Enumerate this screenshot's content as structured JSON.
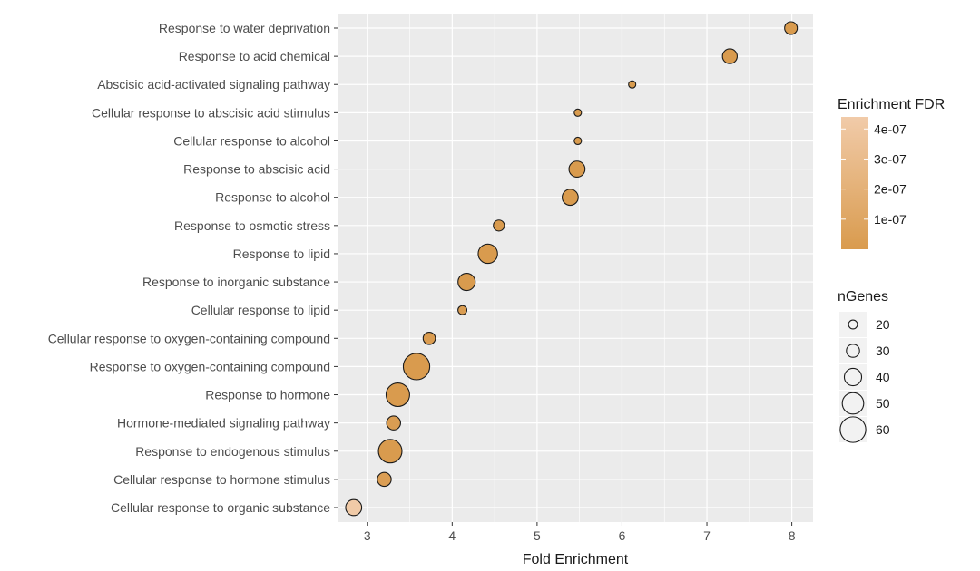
{
  "chart_data": {
    "type": "scatter",
    "xlabel": "Fold Enrichment",
    "ylabel": "",
    "xlim": [
      2.65,
      8.25
    ],
    "x_ticks": [
      3,
      4,
      5,
      6,
      7,
      8
    ],
    "grid": "on",
    "legend_position": "right",
    "categories": [
      "Response to water deprivation",
      "Response to acid chemical",
      "Abscisic acid-activated signaling pathway",
      "Cellular response to abscisic acid stimulus",
      "Cellular response to alcohol",
      "Response to abscisic acid",
      "Response to alcohol",
      "Response to osmotic stress",
      "Response to lipid",
      "Response to inorganic substance",
      "Cellular response to lipid",
      "Cellular response to oxygen-containing compound",
      "Response to oxygen-containing compound",
      "Response to hormone",
      "Hormone-mediated signaling pathway",
      "Response to endogenous stimulus",
      "Cellular response to hormone stimulus",
      "Cellular response to organic substance"
    ],
    "points": [
      {
        "category": "Response to water deprivation",
        "x": 7.99,
        "nGenes": 29,
        "fdr": 1e-09
      },
      {
        "category": "Response to acid chemical",
        "x": 7.27,
        "nGenes": 34,
        "fdr": 1e-09
      },
      {
        "category": "Abscisic acid-activated signaling pathway",
        "x": 6.12,
        "nGenes": 16,
        "fdr": 5e-09
      },
      {
        "category": "Cellular response to abscisic acid stimulus",
        "x": 5.48,
        "nGenes": 16,
        "fdr": 5e-09
      },
      {
        "category": "Cellular response to alcohol",
        "x": 5.48,
        "nGenes": 16,
        "fdr": 5e-09
      },
      {
        "category": "Response to abscisic acid",
        "x": 5.47,
        "nGenes": 37,
        "fdr": 1e-09
      },
      {
        "category": "Response to alcohol",
        "x": 5.39,
        "nGenes": 37,
        "fdr": 1e-09
      },
      {
        "category": "Response to osmotic stress",
        "x": 4.55,
        "nGenes": 25,
        "fdr": 1e-09
      },
      {
        "category": "Response to lipid",
        "x": 4.42,
        "nGenes": 45,
        "fdr": 1e-09
      },
      {
        "category": "Response to inorganic substance",
        "x": 4.17,
        "nGenes": 40,
        "fdr": 1e-09
      },
      {
        "category": "Cellular response to lipid",
        "x": 4.12,
        "nGenes": 20,
        "fdr": 2e-08
      },
      {
        "category": "Cellular response to oxygen-containing compound",
        "x": 3.73,
        "nGenes": 28,
        "fdr": 1e-08
      },
      {
        "category": "Response to oxygen-containing compound",
        "x": 3.58,
        "nGenes": 62,
        "fdr": 1e-09
      },
      {
        "category": "Response to hormone",
        "x": 3.36,
        "nGenes": 55,
        "fdr": 1e-09
      },
      {
        "category": "Hormone-mediated signaling pathway",
        "x": 3.31,
        "nGenes": 32,
        "fdr": 2e-08
      },
      {
        "category": "Response to endogenous stimulus",
        "x": 3.27,
        "nGenes": 55,
        "fdr": 1e-09
      },
      {
        "category": "Cellular response to hormone stimulus",
        "x": 3.2,
        "nGenes": 32,
        "fdr": 3e-08
      },
      {
        "category": "Cellular response to organic substance",
        "x": 2.84,
        "nGenes": 37,
        "fdr": 4.3e-07
      }
    ],
    "color_legend": {
      "title": "Enrichment FDR",
      "min": 0,
      "max": 4.4e-07,
      "ticks": [
        {
          "label": "4e-07",
          "value": 4e-07
        },
        {
          "label": "3e-07",
          "value": 3e-07
        },
        {
          "label": "2e-07",
          "value": 2e-07
        },
        {
          "label": "1e-07",
          "value": 1e-07
        }
      ],
      "color_low": "#d99b4e",
      "color_high": "#f1cba9"
    },
    "size_legend": {
      "title": "nGenes",
      "entries": [
        {
          "label": "20",
          "value": 20
        },
        {
          "label": "30",
          "value": 30
        },
        {
          "label": "40",
          "value": 40
        },
        {
          "label": "50",
          "value": 50
        },
        {
          "label": "60",
          "value": 60
        }
      ]
    },
    "colors": {
      "panel_background": "#ebebeb",
      "grid_line": "#ffffff",
      "point_outline": "#1a1a1a",
      "axis_text": "#4d4d4d"
    }
  }
}
